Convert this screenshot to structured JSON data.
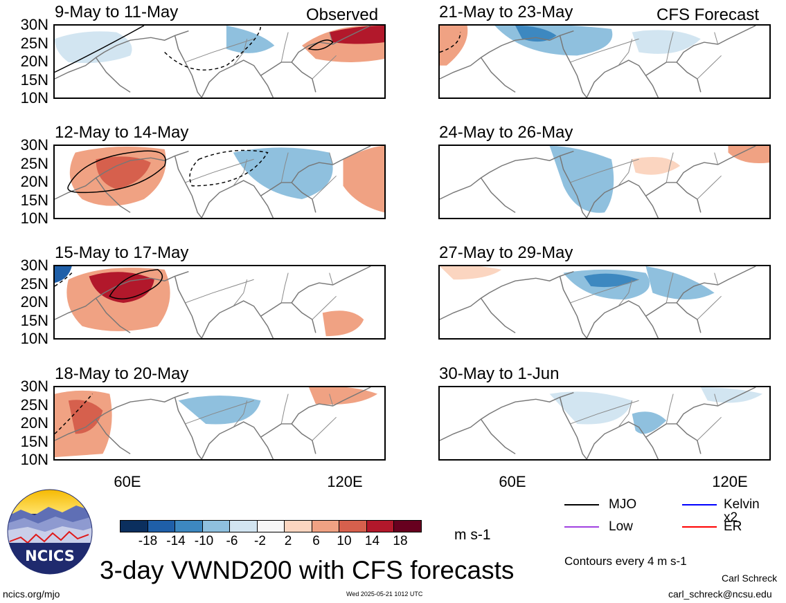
{
  "header": {
    "observed_label": "Observed",
    "forecast_label": "CFS Forecast"
  },
  "panels_left": [
    {
      "title": "9-May to 11-May"
    },
    {
      "title": "12-May to 14-May"
    },
    {
      "title": "15-May to 17-May"
    },
    {
      "title": "18-May to 20-May"
    }
  ],
  "panels_right": [
    {
      "title": "21-May to 23-May"
    },
    {
      "title": "24-May to 26-May"
    },
    {
      "title": "27-May to 29-May"
    },
    {
      "title": "30-May to 1-Jun"
    }
  ],
  "axes": {
    "lat_ticks": [
      "30N",
      "25N",
      "20N",
      "15N",
      "10N"
    ],
    "lon_ticks": [
      "60E",
      "120E"
    ]
  },
  "colorbar": {
    "labels": [
      "-18",
      "-14",
      "-10",
      "-6",
      "-2",
      "2",
      "6",
      "10",
      "14",
      "18"
    ],
    "units": "m s-1",
    "colors": [
      "#0b2f5e",
      "#1f5fa8",
      "#3d88c0",
      "#8fc0de",
      "#d2e5f1",
      "#f7f7f7",
      "#fbd5c0",
      "#f0a283",
      "#d6604d",
      "#b2182b",
      "#67001f"
    ]
  },
  "legend": {
    "items": [
      {
        "label": "MJO",
        "color": "#000000"
      },
      {
        "label": "Kelvin x2",
        "color": "#0000ff"
      },
      {
        "label": "Low",
        "color": "#a040e0"
      },
      {
        "label": "ER",
        "color": "#ff0000"
      }
    ],
    "contour_note": "Contours every 4 m s-1"
  },
  "footer": {
    "main_title": "3-day VWND200 with CFS forecasts",
    "logo_text": "NCICS",
    "url": "ncics.org/mjo",
    "timestamp": "Wed 2025-05-21 1012 UTC",
    "author": "Carl Schreck",
    "email": "carl_schreck@ncsu.edu"
  }
}
